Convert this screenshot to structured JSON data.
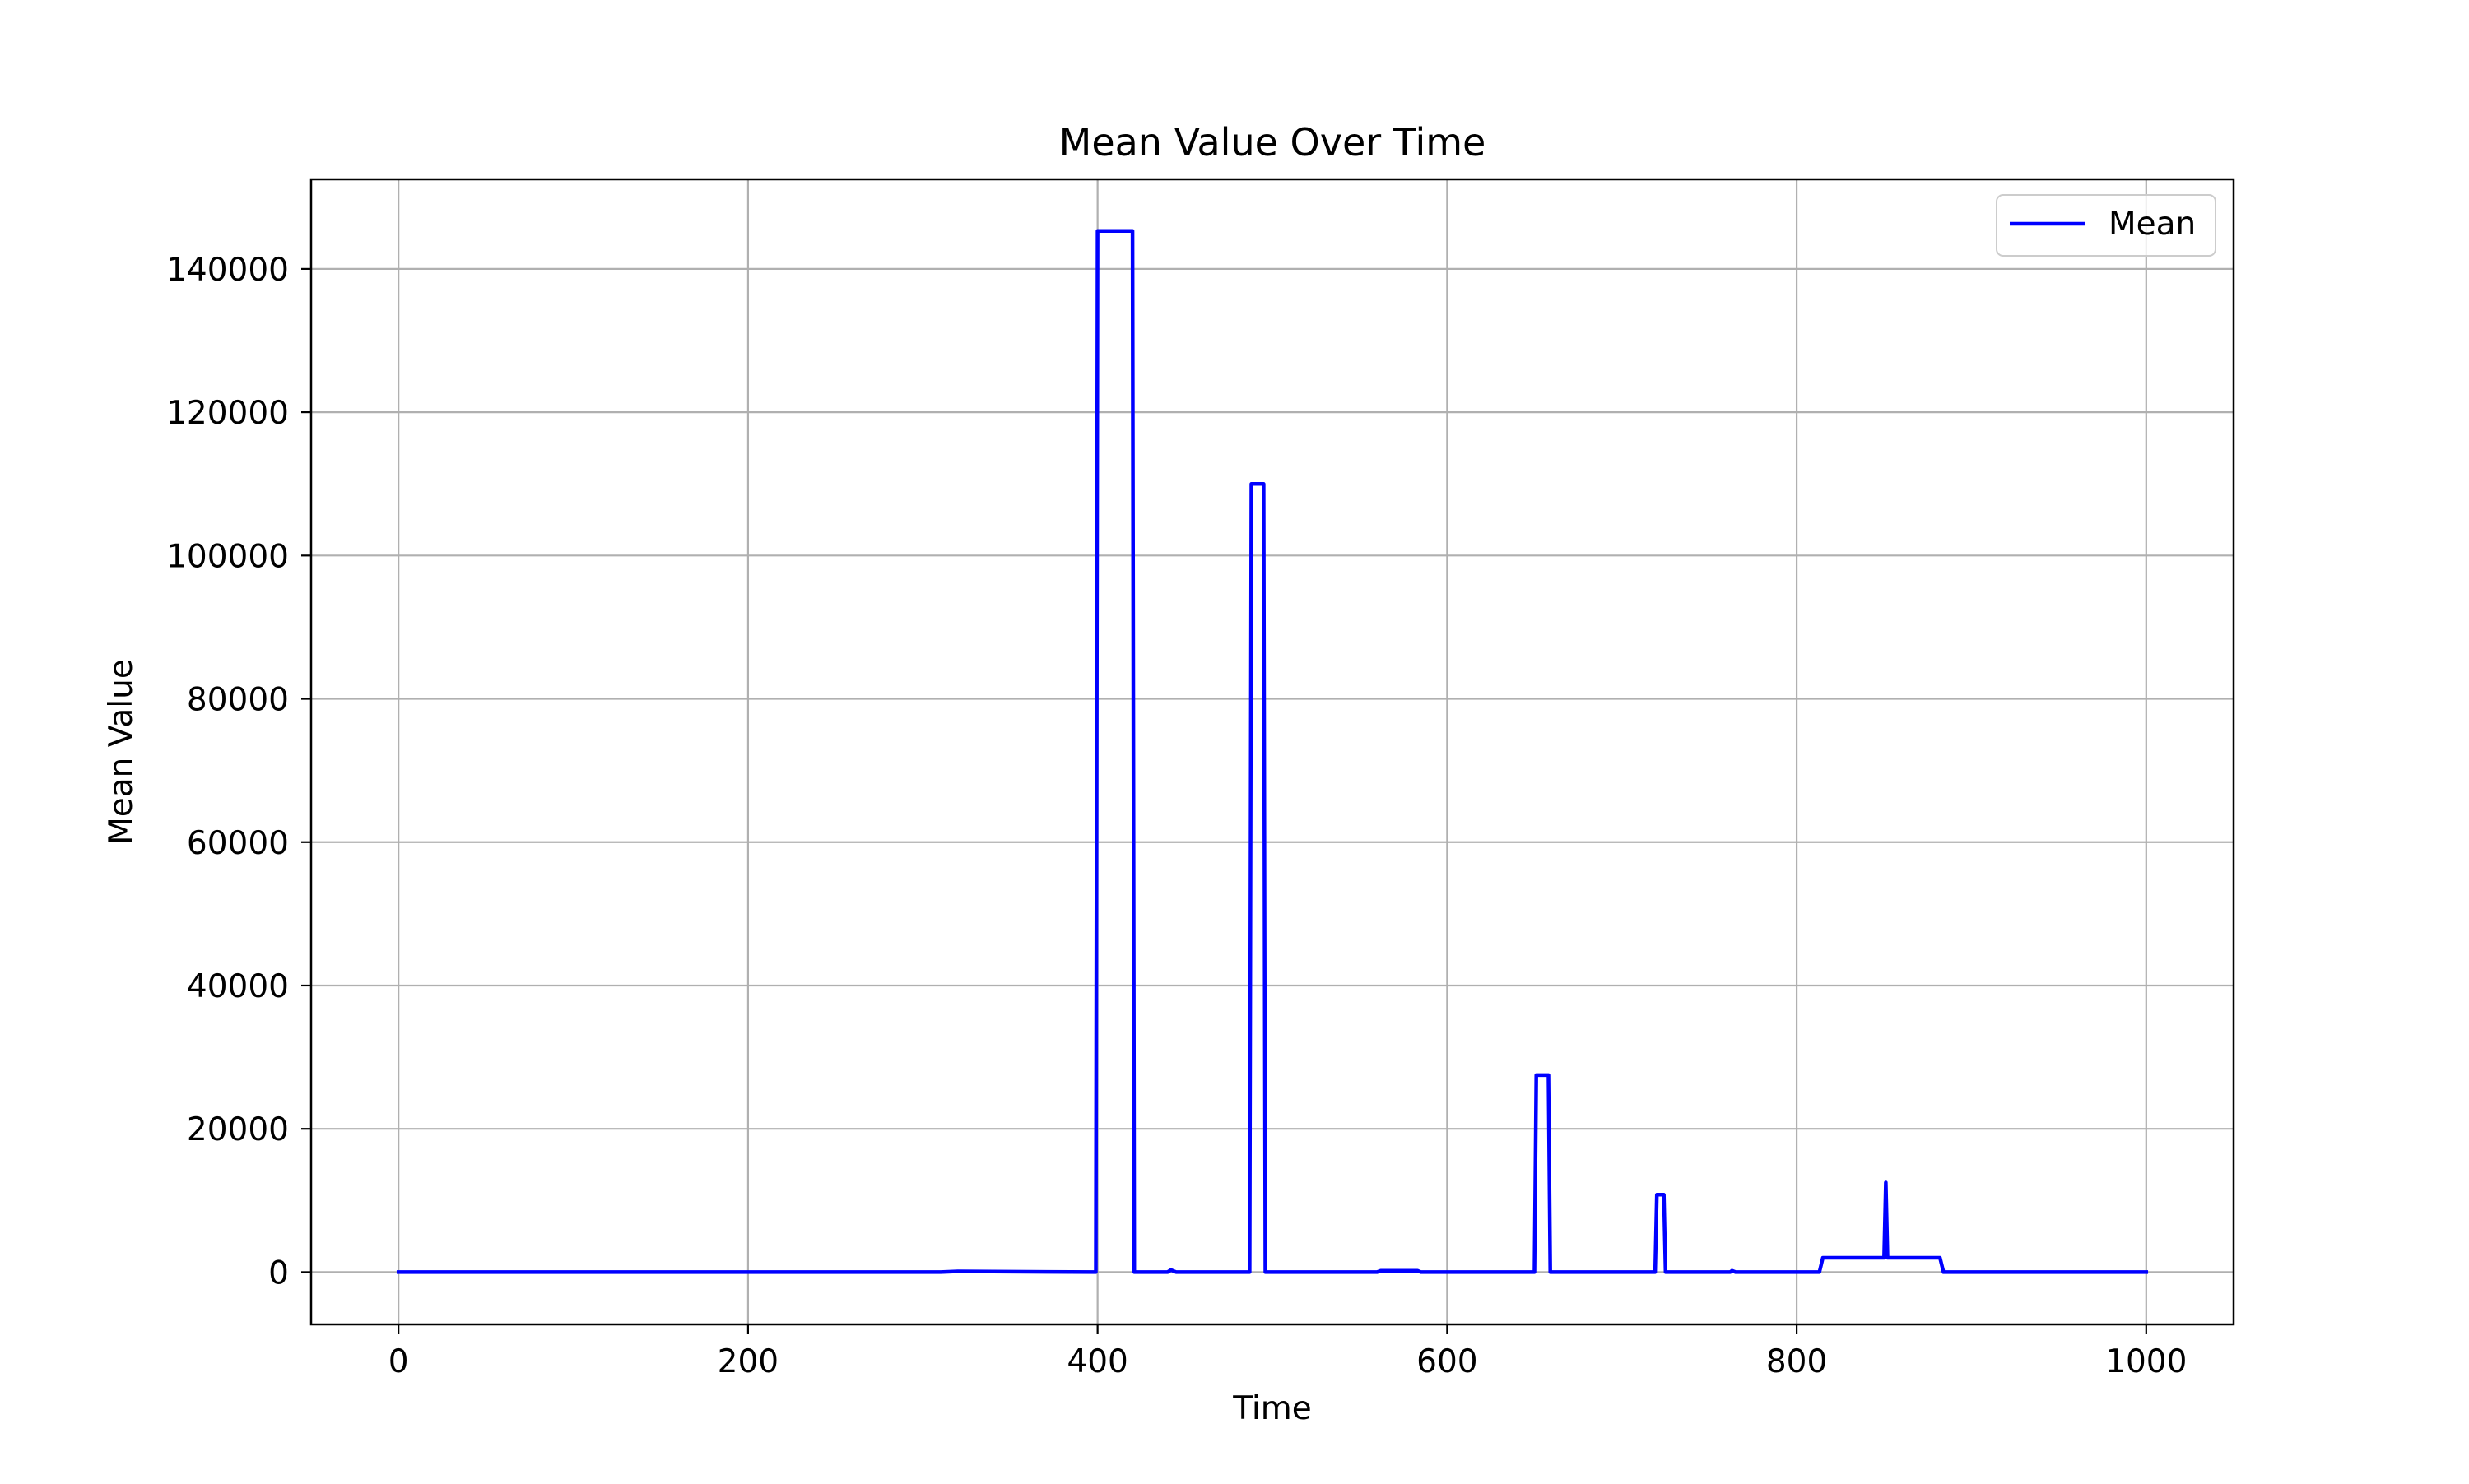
{
  "chart_data": {
    "type": "line",
    "title": "Mean Value Over Time",
    "xlabel": "Time",
    "ylabel": "Mean Value",
    "xlim": [
      -50,
      1050
    ],
    "ylim": [
      -7300,
      152500
    ],
    "xticks": [
      0,
      200,
      400,
      600,
      800,
      1000
    ],
    "yticks": [
      0,
      20000,
      40000,
      60000,
      80000,
      100000,
      120000,
      140000
    ],
    "xtick_labels": [
      "0",
      "200",
      "400",
      "600",
      "800",
      "1000"
    ],
    "ytick_labels": [
      "0",
      "20000",
      "40000",
      "60000",
      "80000",
      "100000",
      "120000",
      "140000"
    ],
    "grid": true,
    "legend_position": "top-right",
    "series": [
      {
        "name": "Mean",
        "color": "#0000ff",
        "x": [
          0,
          150,
          310,
          320,
          399,
          400,
          401,
          420,
          421,
          440,
          442,
          445,
          487,
          488,
          489,
          495,
          496,
          560,
          562,
          583,
          585,
          650,
          651,
          652,
          658,
          659,
          660,
          719,
          720,
          724,
          725,
          762,
          763,
          765,
          813,
          815,
          848,
          850,
          851,
          852,
          853,
          882,
          884,
          1000
        ],
        "y": [
          0,
          0,
          0,
          100,
          0,
          145300,
          145300,
          145300,
          0,
          0,
          300,
          0,
          0,
          110000,
          110000,
          110000,
          0,
          0,
          200,
          200,
          0,
          0,
          27500,
          27500,
          27500,
          0,
          0,
          0,
          10800,
          10800,
          0,
          0,
          200,
          0,
          0,
          2000,
          2000,
          2000,
          12500,
          2000,
          2000,
          2000,
          0,
          0
        ]
      }
    ]
  }
}
